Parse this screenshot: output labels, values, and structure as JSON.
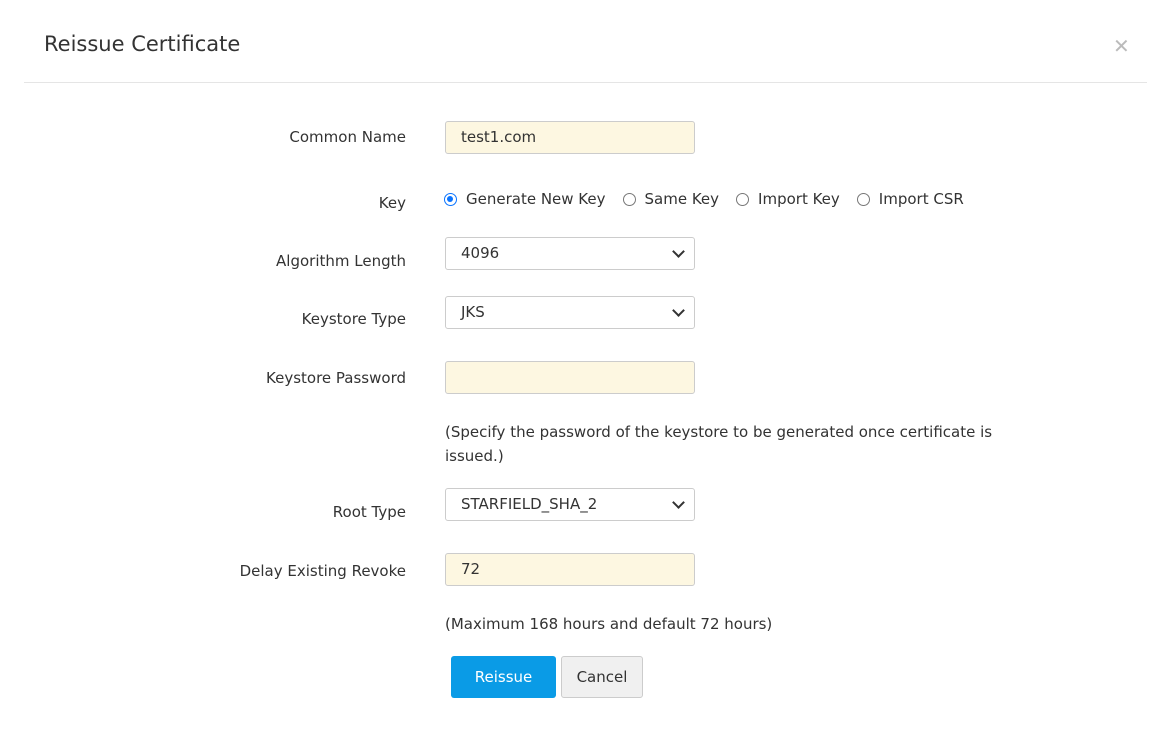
{
  "dialog": {
    "title": "Reissue Certificate",
    "close_icon": "close-icon"
  },
  "form": {
    "common_name": {
      "label": "Common Name",
      "value": "test1.com"
    },
    "key": {
      "label": "Key",
      "options": [
        "Generate New Key",
        "Same Key",
        "Import Key",
        "Import CSR"
      ],
      "selected": "Generate New Key"
    },
    "algorithm_length": {
      "label": "Algorithm Length",
      "value": "4096"
    },
    "keystore_type": {
      "label": "Keystore Type",
      "value": "JKS"
    },
    "keystore_password": {
      "label": "Keystore Password",
      "value": "",
      "help": "(Specify the password of the keystore to be generated once certificate is issued.)"
    },
    "root_type": {
      "label": "Root Type",
      "value": "STARFIELD_SHA_2"
    },
    "delay_existing_revoke": {
      "label": "Delay Existing Revoke",
      "value": "72",
      "help": "(Maximum 168 hours and default 72 hours)"
    }
  },
  "buttons": {
    "reissue": "Reissue",
    "cancel": "Cancel"
  },
  "colors": {
    "primary": "#0a9be6",
    "input_bg": "#fdf7e1",
    "radio_selected": "#0a74ff"
  }
}
